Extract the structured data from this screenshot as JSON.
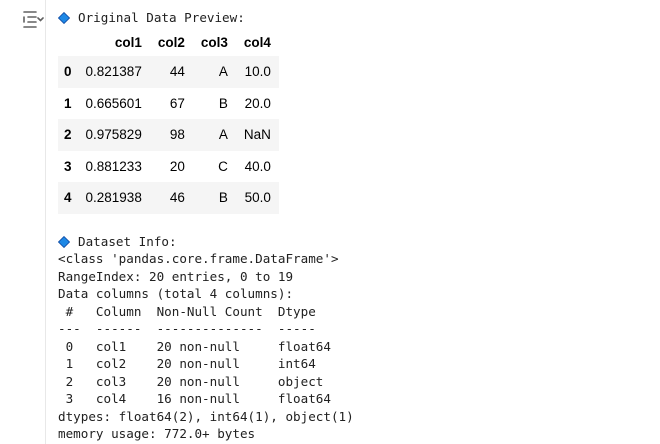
{
  "preview": {
    "header": "Original Data Preview:",
    "columns": [
      "",
      "col1",
      "col2",
      "col3",
      "col4"
    ],
    "rows": [
      [
        "0",
        "0.821387",
        "44",
        "A",
        "10.0"
      ],
      [
        "1",
        "0.665601",
        "67",
        "B",
        "20.0"
      ],
      [
        "2",
        "0.975829",
        "98",
        "A",
        "NaN"
      ],
      [
        "3",
        "0.881233",
        "20",
        "C",
        "40.0"
      ],
      [
        "4",
        "0.281938",
        "46",
        "B",
        "50.0"
      ]
    ]
  },
  "info": {
    "header": "Dataset Info:",
    "lines": [
      "<class 'pandas.core.frame.DataFrame'>",
      "RangeIndex: 20 entries, 0 to 19",
      "Data columns (total 4 columns):",
      " #   Column  Non-Null Count  Dtype  ",
      "---  ------  --------------  -----  ",
      " 0   col1    20 non-null     float64",
      " 1   col2    20 non-null     int64  ",
      " 2   col3    20 non-null     object ",
      " 3   col4    16 non-null     float64",
      "dtypes: float64(2), int64(1), object(1)",
      "memory usage: 772.0+ bytes"
    ]
  },
  "icons": {
    "output_toggle": "output-toggle-icon",
    "bullet": "blue-diamond-icon"
  },
  "colors": {
    "diamond_fill": "#1e88e5",
    "diamond_stroke": "#0d47a1",
    "stripe": "#f5f5f5"
  }
}
